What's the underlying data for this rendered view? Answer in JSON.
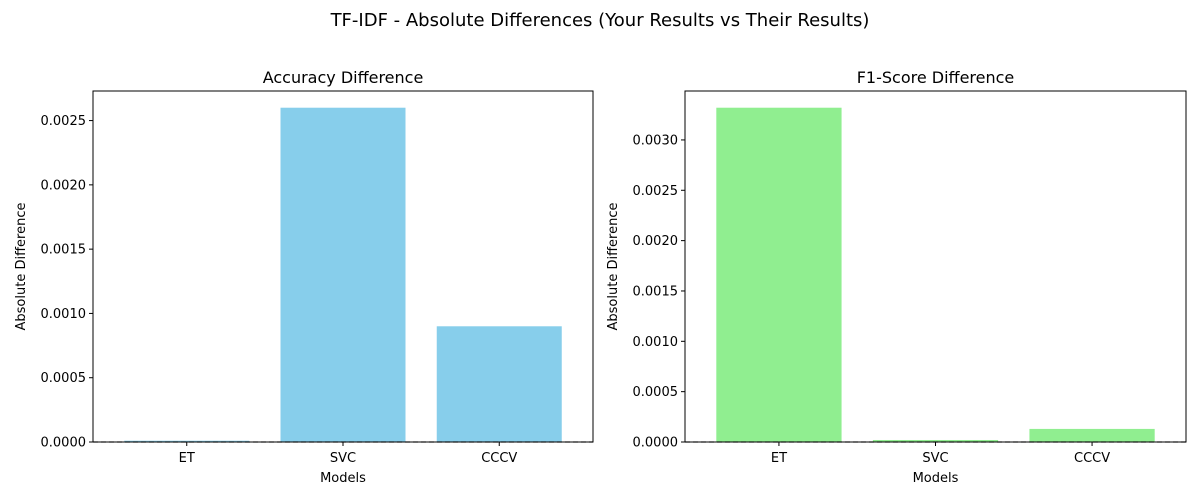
{
  "figure": {
    "title": "TF-IDF - Absolute Differences (Your Results vs Their Results)"
  },
  "chart_data": [
    {
      "type": "bar",
      "title": "Accuracy Difference",
      "xlabel": "Models",
      "ylabel": "Absolute Difference",
      "categories": [
        "ET",
        "SVC",
        "CCCV"
      ],
      "values": [
        1e-05,
        0.0026,
        0.0009
      ],
      "ylim": [
        0,
        0.00273
      ],
      "yticks": [
        "0.0000",
        "0.0005",
        "0.0010",
        "0.0015",
        "0.0020",
        "0.0025"
      ],
      "ytick_values": [
        0,
        0.0005,
        0.001,
        0.0015,
        0.002,
        0.0025
      ],
      "color": "#87ceeb",
      "baseline": {
        "y": 0,
        "style": "dashed",
        "color": "#555555"
      },
      "grid": false
    },
    {
      "type": "bar",
      "title": "F1-Score Difference",
      "xlabel": "Models",
      "ylabel": "Absolute Difference",
      "categories": [
        "ET",
        "SVC",
        "CCCV"
      ],
      "values": [
        0.00332,
        2e-05,
        0.00013
      ],
      "ylim": [
        0,
        0.003486
      ],
      "yticks": [
        "0.0000",
        "0.0005",
        "0.0010",
        "0.0015",
        "0.0020",
        "0.0025",
        "0.0030"
      ],
      "ytick_values": [
        0,
        0.0005,
        0.001,
        0.0015,
        0.002,
        0.0025,
        0.003
      ],
      "color": "#90ee90",
      "baseline": {
        "y": 0,
        "style": "dashed",
        "color": "#555555"
      },
      "grid": false
    }
  ]
}
